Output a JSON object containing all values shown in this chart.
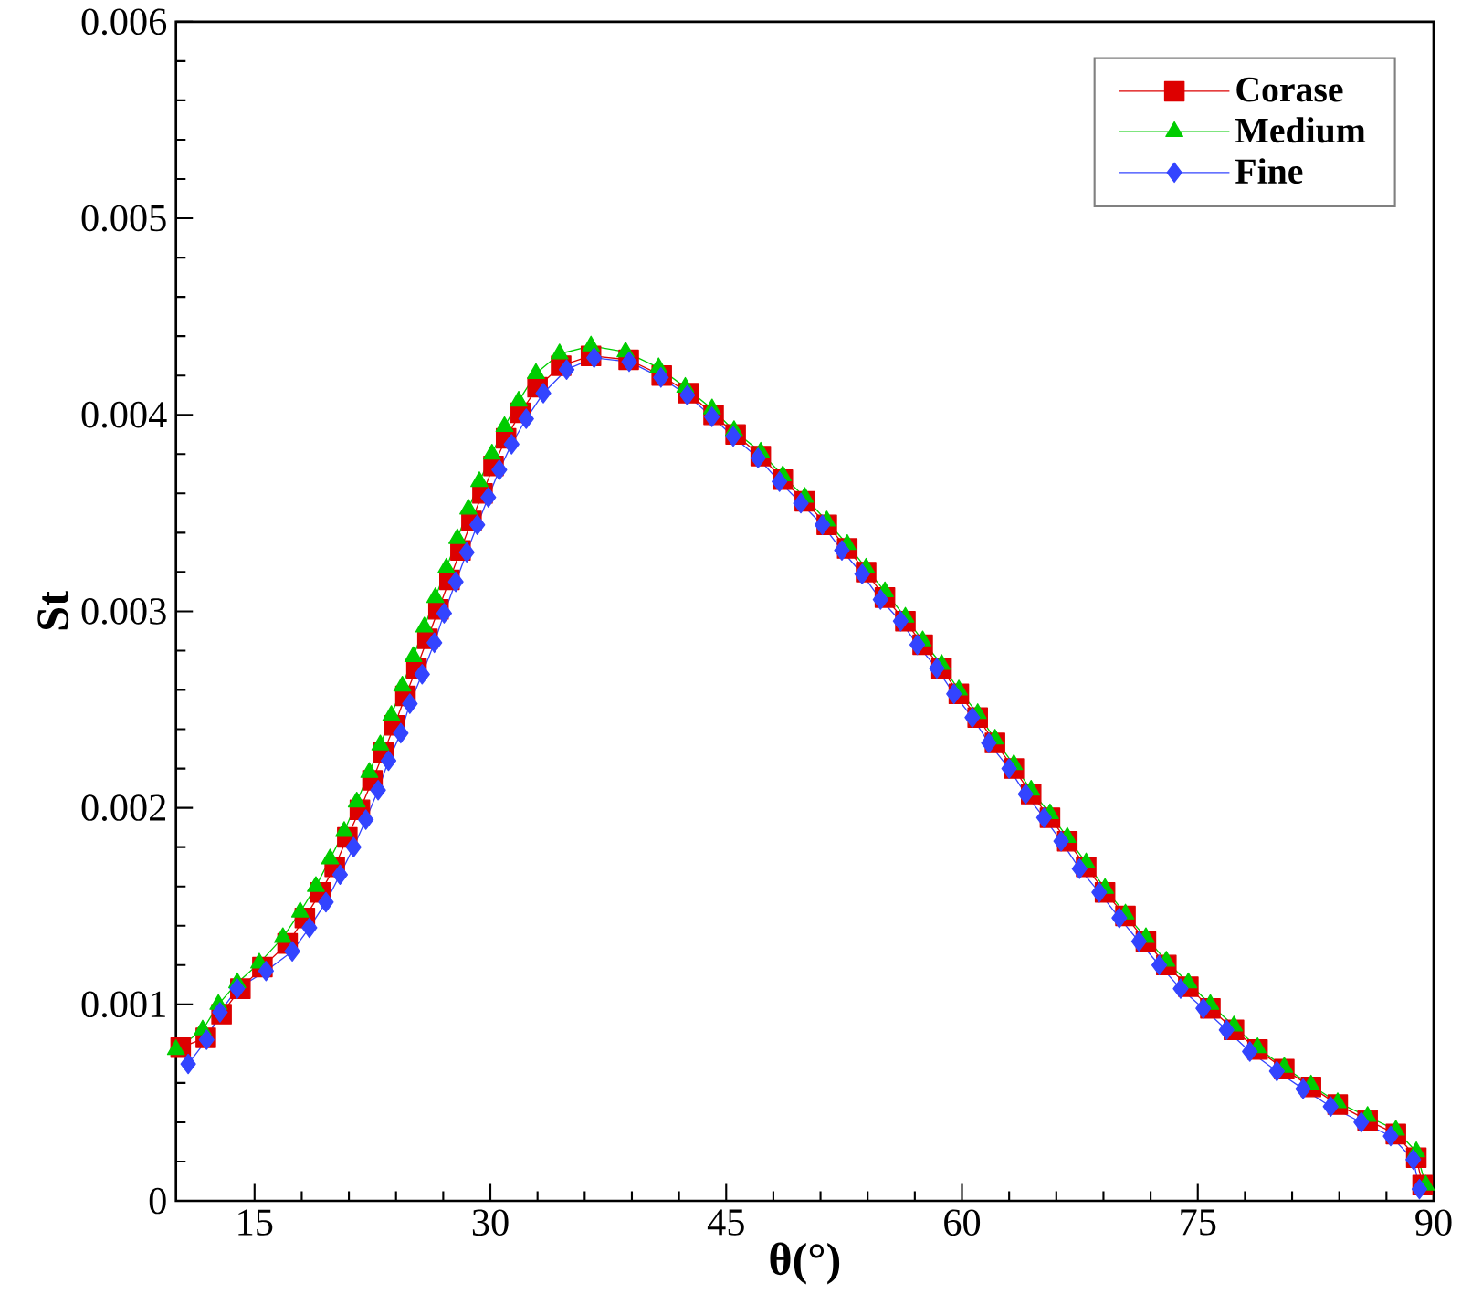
{
  "chart_data": {
    "type": "line",
    "xlabel": "θ(°)",
    "ylabel": "St",
    "xlim": [
      10,
      90
    ],
    "ylim": [
      0,
      0.006
    ],
    "xticks": [
      15,
      30,
      45,
      60,
      75,
      90
    ],
    "yticks": [
      0,
      0.001,
      0.002,
      0.003,
      0.004,
      0.005,
      0.006
    ],
    "legend": "top right",
    "series": [
      {
        "name": "Corase",
        "color": "#dd0000",
        "marker": "square",
        "x": [
          10.3,
          11.9,
          12.9,
          14.1,
          15.5,
          17.1,
          18.2,
          19.2,
          20.1,
          20.9,
          21.7,
          22.5,
          23.2,
          23.9,
          24.6,
          25.3,
          26.0,
          26.7,
          27.4,
          28.1,
          28.8,
          29.5,
          30.2,
          31.0,
          31.9,
          33.0,
          34.5,
          36.4,
          38.8,
          40.9,
          42.6,
          44.2,
          45.6,
          47.2,
          48.6,
          50.0,
          51.4,
          52.7,
          53.9,
          55.1,
          56.4,
          57.5,
          58.7,
          59.8,
          61.0,
          62.1,
          63.3,
          64.4,
          65.6,
          66.7,
          67.9,
          69.1,
          70.4,
          71.7,
          73.0,
          74.4,
          75.8,
          77.3,
          78.8,
          80.5,
          82.2,
          83.9,
          85.8,
          87.6,
          88.9,
          89.3
        ],
        "values": [
          0.00078,
          0.00083,
          0.00095,
          0.00108,
          0.00119,
          0.00131,
          0.00144,
          0.00157,
          0.0017,
          0.00185,
          0.00199,
          0.00214,
          0.00228,
          0.00242,
          0.00257,
          0.00271,
          0.00286,
          0.00301,
          0.00316,
          0.00331,
          0.00346,
          0.0036,
          0.00374,
          0.00388,
          0.00401,
          0.00414,
          0.00425,
          0.0043,
          0.00428,
          0.0042,
          0.00411,
          0.004,
          0.0039,
          0.00379,
          0.00367,
          0.00356,
          0.00344,
          0.00332,
          0.0032,
          0.00307,
          0.00295,
          0.00283,
          0.00271,
          0.00258,
          0.00246,
          0.00233,
          0.0022,
          0.00207,
          0.00195,
          0.00183,
          0.0017,
          0.00157,
          0.00145,
          0.00132,
          0.0012,
          0.00109,
          0.00098,
          0.00087,
          0.00077,
          0.00067,
          0.00058,
          0.00049,
          0.00041,
          0.00034,
          0.00022,
          8e-05
        ]
      },
      {
        "name": "Medium",
        "color": "#00cc00",
        "marker": "triangle",
        "x": [
          10.0,
          11.7,
          12.7,
          13.9,
          15.3,
          16.8,
          17.9,
          18.9,
          19.8,
          20.7,
          21.5,
          22.3,
          23.0,
          23.7,
          24.4,
          25.1,
          25.8,
          26.5,
          27.2,
          27.9,
          28.6,
          29.3,
          30.1,
          30.9,
          31.8,
          32.9,
          34.4,
          36.4,
          38.6,
          40.7,
          42.4,
          44.1,
          45.5,
          47.2,
          48.6,
          50.0,
          51.4,
          52.7,
          53.9,
          55.1,
          56.4,
          57.5,
          58.7,
          59.8,
          61.0,
          62.1,
          63.3,
          64.4,
          65.6,
          66.7,
          67.9,
          69.1,
          70.4,
          71.7,
          73.0,
          74.4,
          75.8,
          77.3,
          78.8,
          80.5,
          82.2,
          83.9,
          85.8,
          87.6,
          88.9,
          89.5
        ],
        "values": [
          0.00077,
          0.00087,
          0.001,
          0.00111,
          0.00121,
          0.00134,
          0.00147,
          0.0016,
          0.00174,
          0.00188,
          0.00203,
          0.00218,
          0.00232,
          0.00247,
          0.00262,
          0.00277,
          0.00292,
          0.00307,
          0.00322,
          0.00337,
          0.00352,
          0.00366,
          0.0038,
          0.00394,
          0.00407,
          0.00421,
          0.00431,
          0.00435,
          0.00432,
          0.00424,
          0.00414,
          0.00403,
          0.00392,
          0.00381,
          0.00369,
          0.00358,
          0.00346,
          0.00334,
          0.00322,
          0.0031,
          0.00297,
          0.00285,
          0.00273,
          0.0026,
          0.00248,
          0.00235,
          0.00222,
          0.00209,
          0.00197,
          0.00185,
          0.00172,
          0.00159,
          0.00146,
          0.00134,
          0.00122,
          0.00111,
          0.001,
          0.00089,
          0.00078,
          0.00068,
          0.00059,
          0.0005,
          0.00043,
          0.00036,
          0.00025,
          8e-05
        ]
      },
      {
        "name": "Fine",
        "color": "#3344ff",
        "marker": "diamond",
        "x": [
          10.78,
          11.95,
          12.8,
          13.9,
          15.73,
          17.4,
          18.49,
          19.54,
          20.44,
          21.3,
          22.08,
          22.86,
          23.52,
          24.3,
          24.88,
          25.66,
          26.44,
          27.06,
          27.8,
          28.5,
          29.17,
          29.87,
          30.57,
          31.35,
          32.28,
          33.37,
          34.85,
          36.6,
          38.83,
          40.85,
          42.53,
          44.09,
          45.45,
          47.03,
          48.39,
          49.75,
          51.12,
          52.36,
          53.65,
          54.82,
          56.1,
          57.16,
          58.4,
          59.49,
          60.66,
          61.71,
          63.0,
          64.05,
          65.22,
          66.31,
          67.48,
          68.73,
          70.01,
          71.26,
          72.55,
          73.91,
          75.35,
          76.83,
          78.31,
          80.03,
          81.7,
          83.45,
          85.4,
          87.27,
          88.71,
          89.1
        ],
        "values": [
          0.000697,
          0.00082,
          0.00096,
          0.00108,
          0.00117,
          0.00127,
          0.00139,
          0.00152,
          0.00166,
          0.0018,
          0.00194,
          0.00209,
          0.00224,
          0.00238,
          0.00253,
          0.00268,
          0.00284,
          0.00299,
          0.00315,
          0.0033,
          0.00344,
          0.00358,
          0.00372,
          0.00385,
          0.00398,
          0.00411,
          0.00423,
          0.00429,
          0.00427,
          0.00419,
          0.0041,
          0.00399,
          0.00389,
          0.00378,
          0.00366,
          0.00355,
          0.00344,
          0.00331,
          0.00319,
          0.00306,
          0.00295,
          0.00283,
          0.00271,
          0.00258,
          0.00246,
          0.00233,
          0.0022,
          0.00207,
          0.00195,
          0.00183,
          0.00169,
          0.00157,
          0.00144,
          0.00132,
          0.0012,
          0.00108,
          0.00098,
          0.00087,
          0.00076,
          0.00066,
          0.00057,
          0.00048,
          0.0004,
          0.00033,
          0.00021,
          6e-05
        ]
      }
    ]
  }
}
